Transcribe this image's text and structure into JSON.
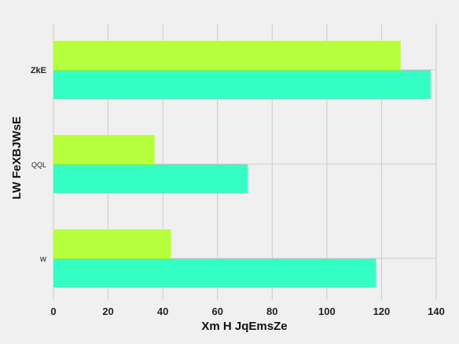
{
  "chart_data": {
    "type": "bar",
    "orientation": "horizontal",
    "xlabel": "Xm H JqEmsZe",
    "ylabel": "LW FeXBJWsE",
    "categories": [
      "w",
      "QQL",
      "ZkE"
    ],
    "series": [
      {
        "values": [
          118,
          71,
          138
        ],
        "color": "#33ffc4"
      },
      {
        "values": [
          43,
          37,
          127
        ],
        "color": "#b6ff3d"
      }
    ],
    "xlim": [
      0,
      140
    ],
    "xticks": [
      "0",
      "20",
      "40",
      "60",
      "80",
      "100",
      "120",
      "140"
    ],
    "grid": true,
    "legend": "none"
  }
}
